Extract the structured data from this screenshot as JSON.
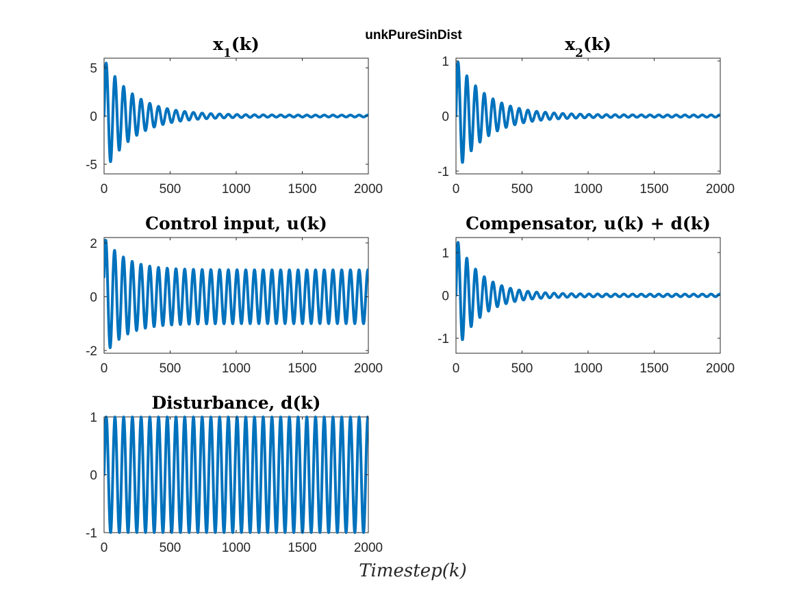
{
  "figure": {
    "suptitle": "unkPureSinDist",
    "xlabel": "Timestep(k)"
  },
  "colors": {
    "line": "#0072BD",
    "axes": "#262626",
    "background": "#ffffff"
  },
  "chart_data": [
    {
      "type": "line",
      "title": "x1(k)",
      "title_main": "x",
      "title_sub": "1",
      "title_tail": "(k)",
      "xlim": [
        0,
        2000
      ],
      "ylim": [
        -6,
        6
      ],
      "xticks": [
        0,
        500,
        1000,
        1500,
        2000
      ],
      "yticks": [
        -5,
        0,
        5
      ],
      "ytick_labels": [
        "-5",
        "0",
        "5"
      ],
      "grid": false,
      "series": [
        {
          "model": "damped_sine",
          "x_range": [
            0,
            2000
          ],
          "amplitude": 5.8,
          "period": 66,
          "decay_per_step": 0.0045,
          "residual_amplitude": 0.1
        }
      ]
    },
    {
      "type": "line",
      "title": "x2(k)",
      "title_main": "x",
      "title_sub": "2",
      "title_tail": "(k)",
      "xlim": [
        0,
        2000
      ],
      "ylim": [
        -1.05,
        1.05
      ],
      "xticks": [
        0,
        500,
        1000,
        1500,
        2000
      ],
      "yticks": [
        -1,
        0,
        1
      ],
      "ytick_labels": [
        "-1",
        "0",
        "1"
      ],
      "grid": false,
      "series": [
        {
          "model": "damped_sine",
          "x_range": [
            0,
            2000
          ],
          "amplitude": 1.03,
          "period": 66,
          "decay_per_step": 0.0045,
          "residual_amplitude": 0.02
        }
      ]
    },
    {
      "type": "line",
      "title": "Control input, u(k)",
      "xlim": [
        0,
        2000
      ],
      "ylim": [
        -2.1,
        2.2
      ],
      "xticks": [
        0,
        500,
        1000,
        1500,
        2000
      ],
      "yticks": [
        -2,
        0,
        2
      ],
      "ytick_labels": [
        "-2",
        "0",
        "2"
      ],
      "grid": false,
      "series": [
        {
          "model": "sine_plus_damped",
          "x_range": [
            0,
            2000
          ],
          "steady_amplitude": 1.0,
          "transient_amplitude": 1.3,
          "period": 66,
          "decay_per_step": 0.006
        }
      ]
    },
    {
      "type": "line",
      "title": "Compensator, u(k) + d(k)",
      "xlim": [
        0,
        2000
      ],
      "ylim": [
        -1.35,
        1.35
      ],
      "xticks": [
        0,
        500,
        1000,
        1500,
        2000
      ],
      "yticks": [
        -1,
        0,
        1
      ],
      "ytick_labels": [
        "-1",
        "0",
        "1"
      ],
      "grid": false,
      "series": [
        {
          "model": "damped_sine",
          "x_range": [
            0,
            2000
          ],
          "amplitude": 1.32,
          "period": 66,
          "decay_per_step": 0.0055,
          "residual_amplitude": 0.03
        }
      ]
    },
    {
      "type": "line",
      "title": "Disturbance, d(k)",
      "xlim": [
        0,
        2000
      ],
      "ylim": [
        -1.0,
        1.0
      ],
      "xticks": [
        0,
        500,
        1000,
        1500,
        2000
      ],
      "yticks": [
        -1,
        0,
        1
      ],
      "ytick_labels": [
        "-1",
        "0",
        "1"
      ],
      "grid": false,
      "series": [
        {
          "model": "pure_sine",
          "x_range": [
            0,
            2000
          ],
          "amplitude": 1.0,
          "period": 66
        }
      ]
    }
  ]
}
